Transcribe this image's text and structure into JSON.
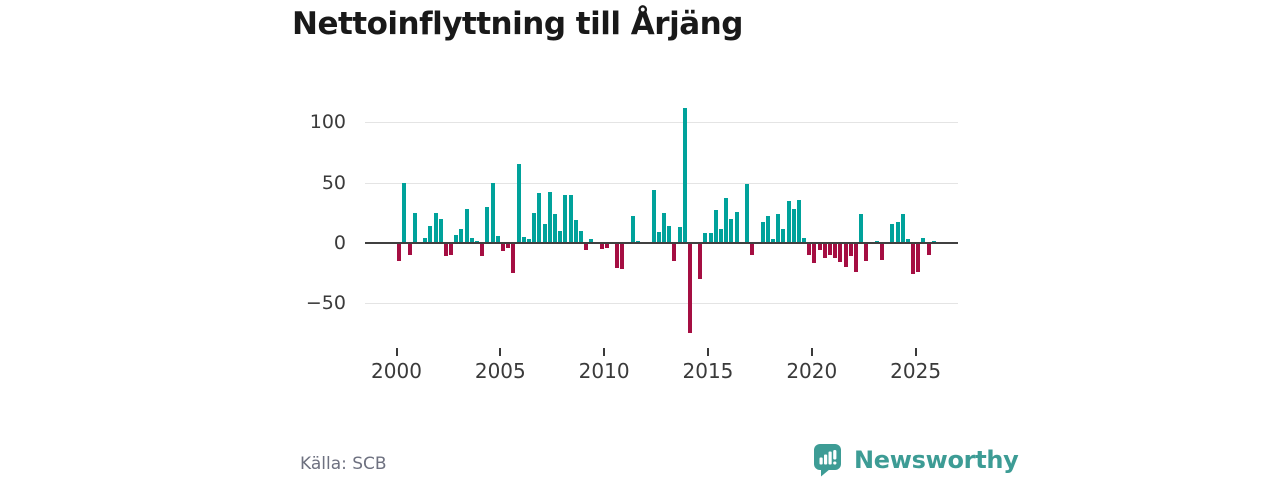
{
  "title": "Nettoinflyttning till Årjäng",
  "source": "Källa: SCB",
  "brand": {
    "name": "Newsworthy"
  },
  "colors": {
    "positive": "#00a29b",
    "negative": "#a50e42",
    "grid": "#e4e4e4",
    "axis": "#404040",
    "text": "#3a3a3a",
    "muted": "#6e7180",
    "brand": "#3d9c95",
    "title": "#191919"
  },
  "chart_data": {
    "type": "bar",
    "title": "Nettoinflyttning till Årjäng",
    "xlabel": "",
    "ylabel": "",
    "ylim": [
      -80,
      115
    ],
    "grid": "horizontal",
    "frequency": "quarterly",
    "y_ticks": [
      100,
      50,
      0,
      -50
    ],
    "y_tick_labels": [
      "100",
      "50",
      "0",
      "−50"
    ],
    "x_tick_labels": [
      "2000",
      "2005",
      "2010",
      "2015",
      "2020",
      "2025"
    ],
    "series": [
      {
        "name": "Nettoinflyttning",
        "quarters": [
          "2000Q1",
          "2000Q2",
          "2000Q3",
          "2000Q4",
          "2001Q1",
          "2001Q2",
          "2001Q3",
          "2001Q4",
          "2002Q1",
          "2002Q2",
          "2002Q3",
          "2002Q4",
          "2003Q1",
          "2003Q2",
          "2003Q3",
          "2003Q4",
          "2004Q1",
          "2004Q2",
          "2004Q3",
          "2004Q4",
          "2005Q1",
          "2005Q2",
          "2005Q3",
          "2005Q4",
          "2006Q1",
          "2006Q2",
          "2006Q3",
          "2006Q4",
          "2007Q1",
          "2007Q2",
          "2007Q3",
          "2007Q4",
          "2008Q1",
          "2008Q2",
          "2008Q3",
          "2008Q4",
          "2009Q1",
          "2009Q2",
          "2009Q3",
          "2009Q4",
          "2010Q1",
          "2010Q2",
          "2010Q3",
          "2010Q4",
          "2011Q1",
          "2011Q2",
          "2011Q3",
          "2011Q4",
          "2012Q1",
          "2012Q2",
          "2012Q3",
          "2012Q4",
          "2013Q1",
          "2013Q2",
          "2013Q3",
          "2013Q4",
          "2014Q1",
          "2014Q2",
          "2014Q3",
          "2014Q4",
          "2015Q1",
          "2015Q2",
          "2015Q3",
          "2015Q4",
          "2016Q1",
          "2016Q2",
          "2016Q3",
          "2016Q4",
          "2017Q1",
          "2017Q2",
          "2017Q3",
          "2017Q4",
          "2018Q1",
          "2018Q2",
          "2018Q3",
          "2018Q4",
          "2019Q1",
          "2019Q2",
          "2019Q3",
          "2019Q4",
          "2020Q1",
          "2020Q2",
          "2020Q3",
          "2020Q4",
          "2021Q1",
          "2021Q2",
          "2021Q3",
          "2021Q4",
          "2022Q1",
          "2022Q2",
          "2022Q3",
          "2022Q4",
          "2023Q1",
          "2023Q2",
          "2023Q3",
          "2023Q4",
          "2024Q1",
          "2024Q2",
          "2024Q3",
          "2024Q4",
          "2025Q1",
          "2025Q2",
          "2025Q3",
          "2025Q4"
        ],
        "values": [
          -14,
          50,
          -9,
          25,
          0,
          4,
          14,
          25,
          20,
          -10,
          -9,
          7,
          12,
          28,
          4,
          2,
          -10,
          30,
          50,
          6,
          -6,
          -3,
          -24,
          65,
          5,
          3,
          25,
          41,
          16,
          42,
          24,
          10,
          40,
          40,
          19,
          10,
          -5,
          3,
          0,
          -4,
          -3,
          0,
          -20,
          -21,
          0,
          22,
          2,
          0,
          0,
          44,
          9,
          25,
          14,
          -14,
          13,
          112,
          -74,
          0,
          -29,
          8,
          8,
          27,
          12,
          37,
          20,
          26,
          0,
          49,
          -9,
          0,
          17,
          22,
          3,
          24,
          12,
          35,
          28,
          36,
          4,
          -9,
          -16,
          -5,
          -12,
          -9,
          -12,
          -15,
          -19,
          -10,
          -23,
          24,
          -14,
          0,
          2,
          -13,
          0,
          16,
          17,
          24,
          3,
          -25,
          -23,
          4,
          -9,
          2
        ]
      }
    ]
  }
}
